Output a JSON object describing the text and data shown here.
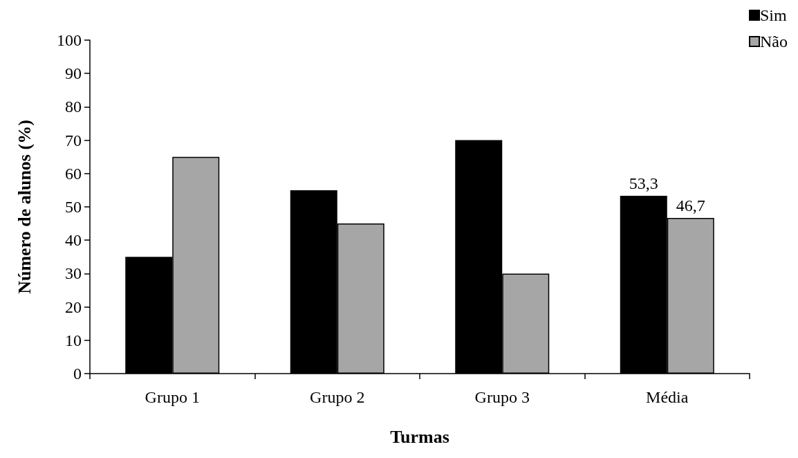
{
  "chart_data": {
    "type": "bar",
    "xlabel": "Turmas",
    "ylabel": "Número de alunos (%)",
    "categories": [
      "Grupo 1",
      "Grupo 2",
      "Grupo 3",
      "Média"
    ],
    "series": [
      {
        "name": "Sim",
        "color": "#000000",
        "values": [
          35,
          55,
          70,
          53.3
        ],
        "value_labels": [
          null,
          null,
          null,
          "53,3"
        ]
      },
      {
        "name": "Não",
        "color": "#a6a6a6",
        "values": [
          65,
          45,
          30,
          46.7
        ],
        "value_labels": [
          null,
          null,
          null,
          "46,7"
        ]
      }
    ],
    "ylim": [
      0,
      100
    ],
    "yticks": [
      0,
      10,
      20,
      30,
      40,
      50,
      60,
      70,
      80,
      90,
      100
    ],
    "grid": false,
    "legend": "top right"
  }
}
